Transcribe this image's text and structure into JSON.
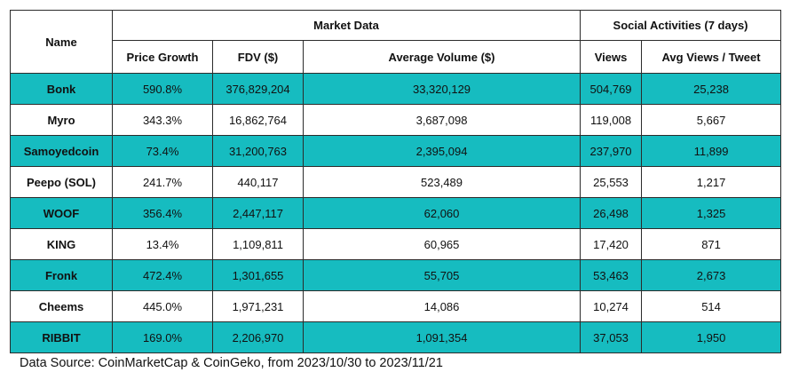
{
  "table": {
    "headers": {
      "name": "Name",
      "market_data": "Market Data",
      "social": "Social Activities (7 days)",
      "price_growth": "Price Growth",
      "fdv": "FDV ($)",
      "avg_volume": "Average Volume ($)",
      "views": "Views",
      "avg_views_tweet": "Avg Views / Tweet"
    },
    "rows": [
      {
        "name": "Bonk",
        "price_growth": "590.8%",
        "fdv": "376,829,204",
        "avg_volume": "33,320,129",
        "views": "504,769",
        "avg_views_tweet": "25,238",
        "highlight": true
      },
      {
        "name": "Myro",
        "price_growth": "343.3%",
        "fdv": "16,862,764",
        "avg_volume": "3,687,098",
        "views": "119,008",
        "avg_views_tweet": "5,667",
        "highlight": false
      },
      {
        "name": "Samoyedcoin",
        "price_growth": "73.4%",
        "fdv": "31,200,763",
        "avg_volume": "2,395,094",
        "views": "237,970",
        "avg_views_tweet": "11,899",
        "highlight": true
      },
      {
        "name": "Peepo (SOL)",
        "price_growth": "241.7%",
        "fdv": "440,117",
        "avg_volume": "523,489",
        "views": "25,553",
        "avg_views_tweet": "1,217",
        "highlight": false
      },
      {
        "name": "WOOF",
        "price_growth": "356.4%",
        "fdv": "2,447,117",
        "avg_volume": "62,060",
        "views": "26,498",
        "avg_views_tweet": "1,325",
        "highlight": true
      },
      {
        "name": "KING",
        "price_growth": "13.4%",
        "fdv": "1,109,811",
        "avg_volume": "60,965",
        "views": "17,420",
        "avg_views_tweet": "871",
        "highlight": false
      },
      {
        "name": "Fronk",
        "price_growth": "472.4%",
        "fdv": "1,301,655",
        "avg_volume": "55,705",
        "views": "53,463",
        "avg_views_tweet": "2,673",
        "highlight": true
      },
      {
        "name": "Cheems",
        "price_growth": "445.0%",
        "fdv": "1,971,231",
        "avg_volume": "14,086",
        "views": "10,274",
        "avg_views_tweet": "514",
        "highlight": false
      },
      {
        "name": "RIBBIT",
        "price_growth": "169.0%",
        "fdv": "2,206,970",
        "avg_volume": "1,091,354",
        "views": "37,053",
        "avg_views_tweet": "1,950",
        "highlight": true
      }
    ]
  },
  "colors": {
    "highlight": "#16bcc0",
    "border": "#2b2b2b"
  },
  "footer": {
    "source": "Data Source: CoinMarketCap & CoinGeko, from 2023/10/30 to 2023/11/21"
  }
}
